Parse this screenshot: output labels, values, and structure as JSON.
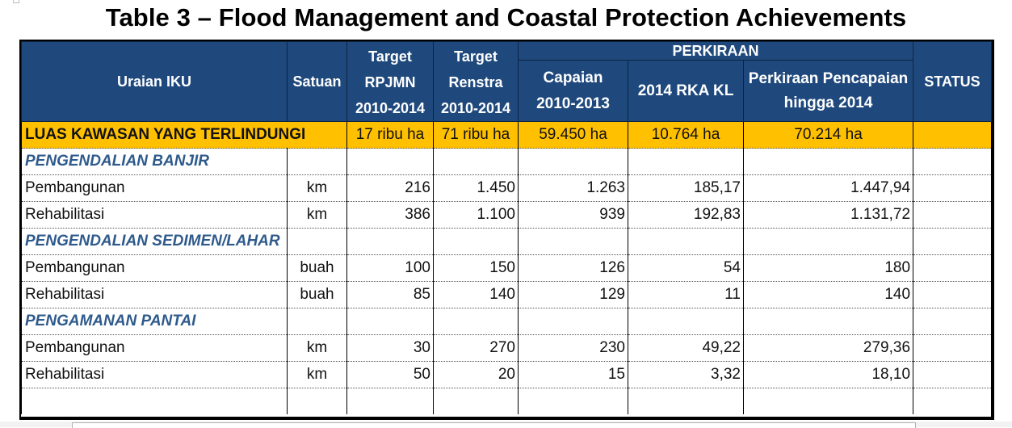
{
  "title": "Table 3 – Flood Management and Coastal Protection Achievements",
  "header": {
    "uraian": "Uraian IKU",
    "satuan": "Satuan",
    "target_rpjmn": [
      "Target",
      "RPJMN",
      "2010-2014"
    ],
    "target_renstra": [
      "Target",
      "Renstra",
      "2010-2014"
    ],
    "perkiraan_group": "PERKIRAAN",
    "capaian": [
      "Capaian",
      "2010-2013"
    ],
    "rka_kl": "2014 RKA KL",
    "perkiraan_pencapaian": [
      "Perkiraan Pencapaian",
      "hingga 2014"
    ],
    "status": "STATUS"
  },
  "summary_row": {
    "label": "LUAS KAWASAN YANG TERLINDUNGI",
    "target_rpjmn": "17 ribu ha",
    "target_renstra": "71 ribu ha",
    "capaian": "59.450 ha",
    "rka_kl": "10.764 ha",
    "perkiraan": "70.214 ha",
    "status": ""
  },
  "sections": [
    {
      "category": "PENGENDALIAN BANJIR",
      "rows": [
        {
          "uraian": "Pembangunan",
          "satuan": "km",
          "target_rpjmn": "216",
          "target_renstra": "1.450",
          "capaian": "1.263",
          "rka_kl": "185,17",
          "perkiraan": "1.447,94",
          "status": ""
        },
        {
          "uraian": "Rehabilitasi",
          "satuan": "km",
          "target_rpjmn": "386",
          "target_renstra": "1.100",
          "capaian": "939",
          "rka_kl": "192,83",
          "perkiraan": "1.131,72",
          "status": ""
        }
      ]
    },
    {
      "category": "PENGENDALIAN SEDIMEN/LAHAR",
      "rows": [
        {
          "uraian": "Pembangunan",
          "satuan": "buah",
          "target_rpjmn": "100",
          "target_renstra": "150",
          "capaian": "126",
          "rka_kl": "54",
          "perkiraan": "180",
          "status": ""
        },
        {
          "uraian": "Rehabilitasi",
          "satuan": "buah",
          "target_rpjmn": "85",
          "target_renstra": "140",
          "capaian": "129",
          "rka_kl": "11",
          "perkiraan": "140",
          "status": ""
        }
      ]
    },
    {
      "category": "PENGAMANAN PANTAI",
      "rows": [
        {
          "uraian": "Pembangunan",
          "satuan": "km",
          "target_rpjmn": "30",
          "target_renstra": "270",
          "capaian": "230",
          "rka_kl": "49,22",
          "perkiraan": "279,36",
          "status": ""
        },
        {
          "uraian": "Rehabilitasi",
          "satuan": "km",
          "target_rpjmn": "50",
          "target_renstra": "20",
          "capaian": "15",
          "rka_kl": "3,32",
          "perkiraan": "18,10",
          "status": ""
        }
      ]
    }
  ],
  "colors": {
    "header_bg": "#1f497d",
    "summary_bg": "#ffc000",
    "category_text": "#2e5a8c"
  }
}
